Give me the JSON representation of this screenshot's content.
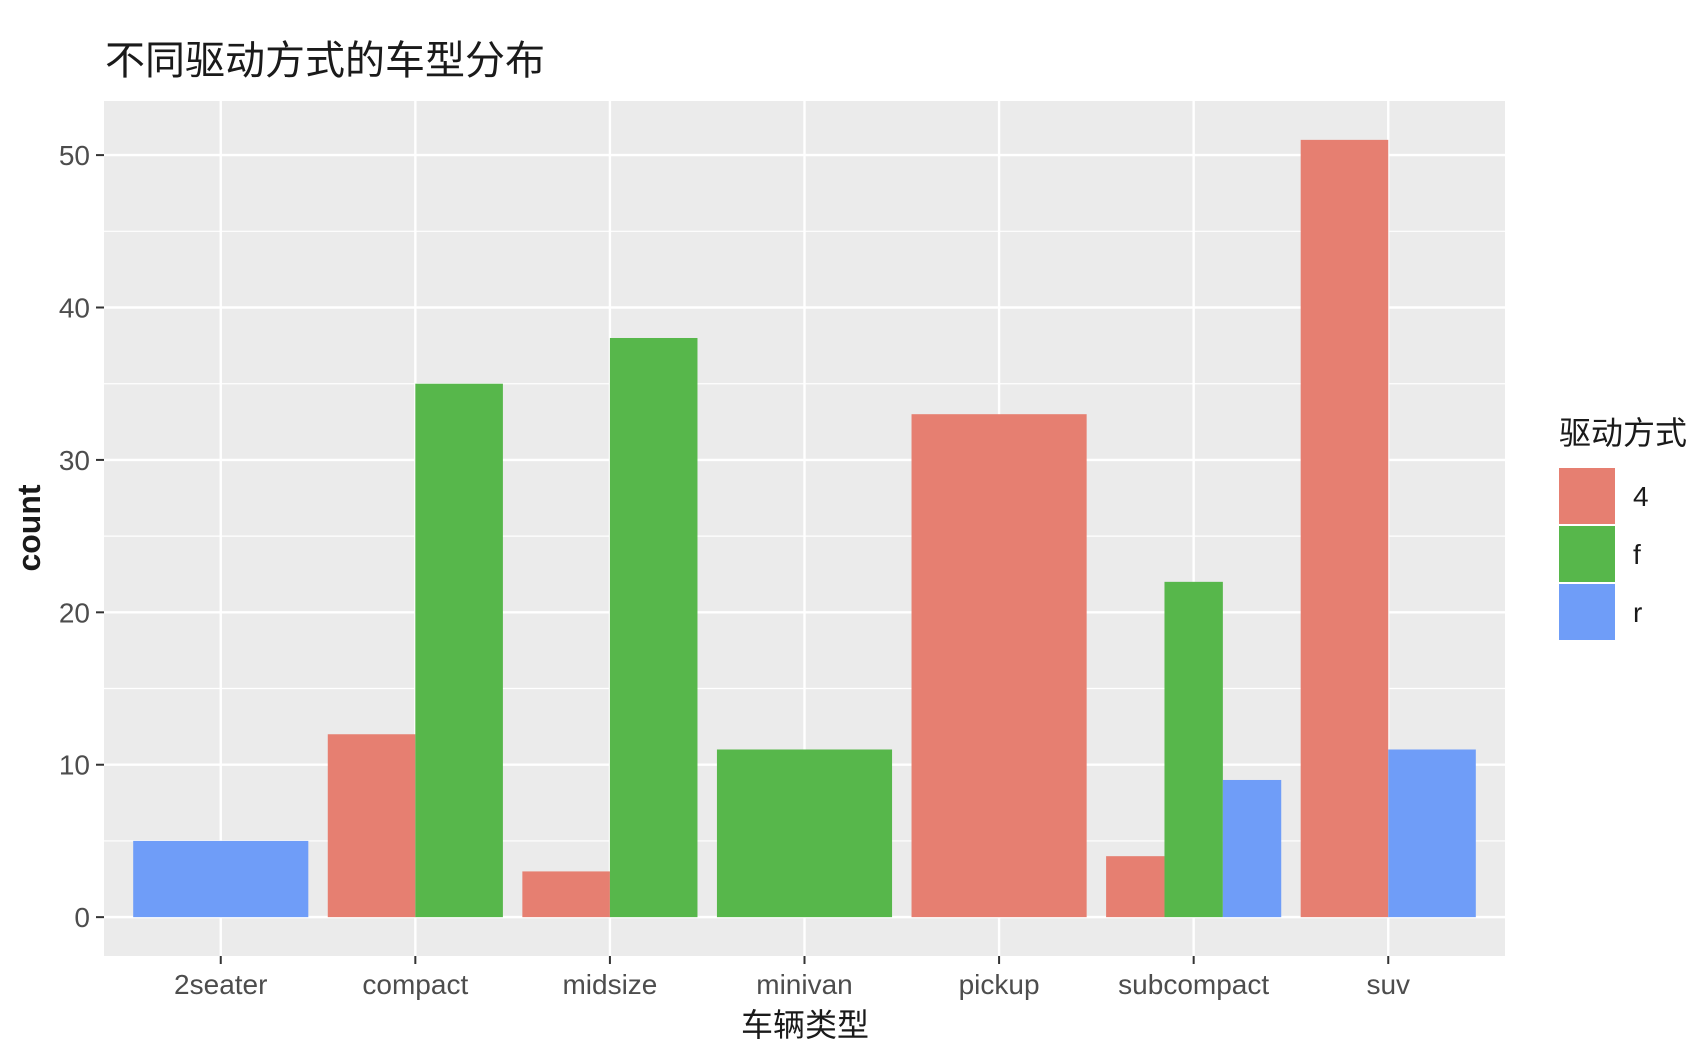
{
  "chart_data": {
    "type": "bar",
    "title": "不同驱动方式的车型分布",
    "xlabel": "车辆类型",
    "ylabel": "count",
    "categories": [
      "2seater",
      "compact",
      "midsize",
      "minivan",
      "pickup",
      "subcompact",
      "suv"
    ],
    "series": [
      {
        "name": "4",
        "color": "#E67F71",
        "values": [
          0,
          12,
          3,
          0,
          33,
          4,
          51
        ]
      },
      {
        "name": "f",
        "color": "#57B74B",
        "values": [
          0,
          35,
          38,
          11,
          0,
          22,
          0
        ]
      },
      {
        "name": "r",
        "color": "#6F9DF8",
        "values": [
          5,
          0,
          0,
          0,
          0,
          9,
          11
        ]
      }
    ],
    "ylim": [
      -2.55,
      53.55
    ],
    "yticks": [
      0,
      10,
      20,
      30,
      40,
      50
    ],
    "ytick_labels": [
      "0",
      "10",
      "20",
      "30",
      "40",
      "50"
    ],
    "grid": true,
    "legend": {
      "title": "驱动方式",
      "position": "right"
    },
    "panel_background": "#EBEBEB",
    "grid_color": "#FFFFFF"
  }
}
